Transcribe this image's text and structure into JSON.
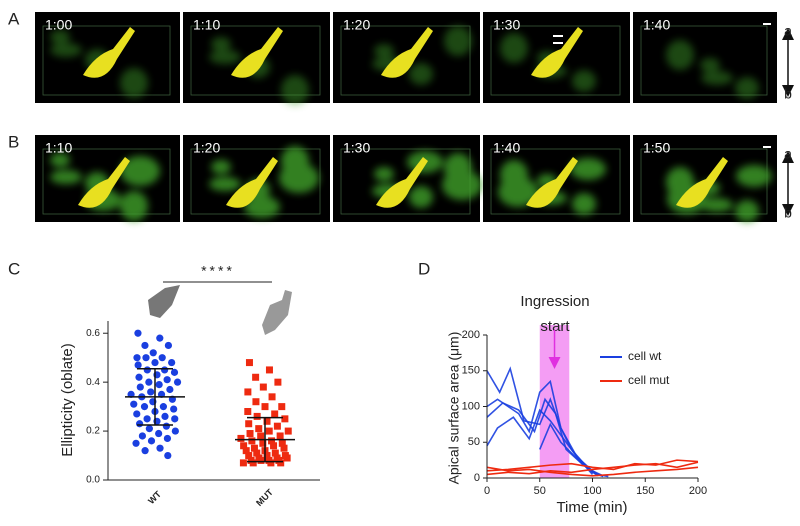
{
  "image_rows": [
    {
      "label": "A",
      "times": [
        "1:00",
        "1:10",
        "1:20",
        "1:30",
        "1:40"
      ],
      "end_labels": [
        "a",
        "b"
      ]
    },
    {
      "label": "B",
      "times": [
        "1:10",
        "1:20",
        "1:30",
        "1:40",
        "1:50"
      ],
      "end_labels": [
        "a",
        "b"
      ]
    }
  ],
  "chart_data": [
    {
      "type": "dot",
      "panel_label": "C",
      "ylabel": "Ellipticity (oblate)",
      "significance": "****",
      "categories": [
        "WT",
        "MUT"
      ],
      "colors": [
        "#1a3fe0",
        "#ee2a10"
      ],
      "markers": [
        "circle",
        "square"
      ],
      "values": [
        [
          0.6,
          0.58,
          0.55,
          0.55,
          0.52,
          0.5,
          0.5,
          0.5,
          0.48,
          0.48,
          0.47,
          0.45,
          0.45,
          0.44,
          0.43,
          0.42,
          0.41,
          0.4,
          0.4,
          0.39,
          0.38,
          0.37,
          0.36,
          0.35,
          0.35,
          0.34,
          0.33,
          0.32,
          0.31,
          0.3,
          0.3,
          0.29,
          0.28,
          0.27,
          0.26,
          0.25,
          0.25,
          0.24,
          0.23,
          0.22,
          0.21,
          0.2,
          0.19,
          0.18,
          0.17,
          0.16,
          0.15,
          0.13,
          0.12,
          0.1
        ],
        [
          0.48,
          0.45,
          0.42,
          0.4,
          0.38,
          0.36,
          0.34,
          0.32,
          0.3,
          0.3,
          0.28,
          0.27,
          0.26,
          0.25,
          0.24,
          0.23,
          0.22,
          0.21,
          0.2,
          0.2,
          0.19,
          0.18,
          0.18,
          0.17,
          0.16,
          0.16,
          0.15,
          0.15,
          0.14,
          0.14,
          0.13,
          0.13,
          0.12,
          0.12,
          0.11,
          0.11,
          0.1,
          0.1,
          0.1,
          0.09,
          0.09,
          0.09,
          0.08,
          0.08,
          0.08,
          0.08,
          0.07,
          0.07,
          0.07,
          0.07
        ]
      ],
      "means": [
        0.34,
        0.165
      ],
      "sds": [
        0.115,
        0.09
      ],
      "ylim": [
        0,
        0.65
      ],
      "yticks": [
        {
          "value": 0,
          "label": "0.0"
        },
        0.2,
        0.4,
        0.6
      ]
    },
    {
      "type": "line",
      "panel_label": "D",
      "annotation": [
        "Ingression",
        "start"
      ],
      "xlabel": "Time (min)",
      "ylabel": "Apical surface area (μm)",
      "highlight_x": [
        50,
        78
      ],
      "highlight_color": "#f07cf0",
      "xlim": [
        0,
        200
      ],
      "xticks": [
        0,
        50,
        100,
        150,
        200
      ],
      "ylim": [
        0,
        200
      ],
      "yticks": [
        0,
        50,
        100,
        150,
        200
      ],
      "series": [
        {
          "name": "cell wt",
          "color": "#1a3fe0",
          "lines": [
            {
              "x": [
                0,
                12,
                22,
                35,
                50,
                60,
                70,
                80,
                95,
                105,
                115
              ],
              "values": [
                150,
                120,
                153,
                80,
                75,
                110,
                70,
                40,
                15,
                5,
                2
              ]
            },
            {
              "x": [
                0,
                10,
                20,
                30,
                40,
                50,
                60,
                70,
                85,
                100
              ],
              "values": [
                100,
                110,
                100,
                90,
                65,
                120,
                135,
                70,
                30,
                5
              ]
            },
            {
              "x": [
                0,
                15,
                30,
                45,
                55,
                65,
                75,
                90,
                105
              ],
              "values": [
                85,
                105,
                95,
                65,
                110,
                90,
                40,
                20,
                3
              ]
            },
            {
              "x": [
                0,
                10,
                25,
                40,
                50,
                60,
                70,
                85,
                100,
                110
              ],
              "values": [
                45,
                70,
                85,
                55,
                95,
                80,
                60,
                30,
                10,
                3
              ]
            },
            {
              "x": [
                50,
                60,
                70,
                80,
                90,
                100,
                110
              ],
              "values": [
                40,
                75,
                50,
                35,
                20,
                8,
                2
              ]
            }
          ]
        },
        {
          "name": "cell mut",
          "color": "#ee2a10",
          "lines": [
            {
              "x": [
                0,
                20,
                40,
                60,
                80,
                100,
                120,
                140,
                160,
                180,
                200
              ],
              "values": [
                10,
                12,
                15,
                18,
                20,
                15,
                12,
                20,
                18,
                25,
                23
              ]
            },
            {
              "x": [
                0,
                20,
                40,
                60,
                80,
                100,
                120,
                140,
                160,
                180,
                200
              ],
              "values": [
                5,
                8,
                6,
                10,
                8,
                12,
                15,
                18,
                20,
                15,
                22
              ]
            },
            {
              "x": [
                0,
                20,
                40,
                60,
                80,
                100,
                120,
                140,
                160,
                180,
                200
              ],
              "values": [
                15,
                10,
                12,
                8,
                5,
                3,
                5,
                8,
                10,
                12,
                15
              ]
            }
          ]
        }
      ]
    }
  ]
}
